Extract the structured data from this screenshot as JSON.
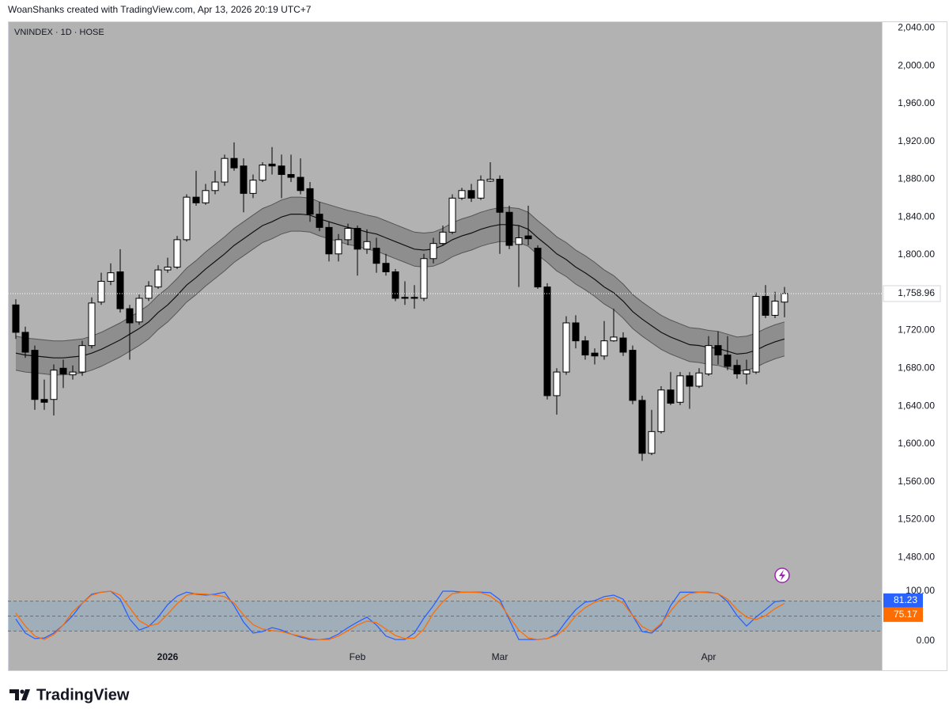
{
  "header": {
    "credit": "WoanShanks created with TradingView.com, Apr 13, 2026 20:19 UTC+7"
  },
  "footer": {
    "brand": "TradingView"
  },
  "chart_data": [
    {
      "type": "candlestick",
      "title": "VNINDEX · 1D · HOSE",
      "categories": [
        null,
        null,
        null,
        null,
        null,
        null,
        null,
        null,
        null,
        null,
        null,
        null,
        null,
        null,
        null,
        null,
        "2026",
        null,
        null,
        null,
        null,
        null,
        null,
        null,
        null,
        null,
        null,
        null,
        null,
        null,
        null,
        null,
        null,
        null,
        null,
        null,
        "Feb",
        null,
        null,
        null,
        null,
        null,
        null,
        null,
        null,
        null,
        null,
        null,
        null,
        null,
        null,
        "Mar",
        null,
        null,
        null,
        null,
        null,
        null,
        null,
        null,
        null,
        null,
        null,
        null,
        null,
        null,
        null,
        null,
        null,
        null,
        null,
        null,
        null,
        "Apr",
        null,
        null,
        null,
        null,
        null,
        null,
        null,
        null
      ],
      "open": [
        1747,
        1718,
        1699,
        1647,
        1647,
        1680,
        1673,
        1676,
        1704,
        1750,
        1772,
        1782,
        1743,
        1729,
        1754,
        1766,
        1784,
        1787,
        1816,
        1861,
        1855,
        1868,
        1877,
        1902,
        1894,
        1865,
        1879,
        1896,
        1894,
        1885,
        1882,
        1870,
        1843,
        1829,
        1801,
        1816,
        1828,
        1806,
        1807,
        1791,
        1782,
        1755,
        1755,
        1754,
        1796,
        1812,
        1824,
        1860,
        1868,
        1860,
        1878,
        1880,
        1845,
        1811,
        1820,
        1807,
        1766,
        1651,
        1676,
        1728,
        1709,
        1696,
        1693,
        1709,
        1712,
        1699,
        1646,
        1590,
        1613,
        1657,
        1644,
        1672,
        1661,
        1674,
        1704,
        1694,
        1683,
        1674,
        1676,
        1756,
        1736,
        1750
      ],
      "high": [
        1753,
        1724,
        1704,
        1668,
        1684,
        1689,
        1683,
        1709,
        1755,
        1781,
        1791,
        1806,
        1747,
        1758,
        1772,
        1789,
        1797,
        1820,
        1864,
        1889,
        1875,
        1889,
        1906,
        1919,
        1902,
        1885,
        1898,
        1914,
        1906,
        1906,
        1902,
        1877,
        1856,
        1835,
        1822,
        1833,
        1831,
        1827,
        1818,
        1801,
        1785,
        1772,
        1768,
        1801,
        1818,
        1831,
        1864,
        1871,
        1875,
        1884,
        1898,
        1884,
        1852,
        1831,
        1852,
        1810,
        1770,
        1680,
        1735,
        1736,
        1714,
        1701,
        1730,
        1743,
        1718,
        1704,
        1651,
        1636,
        1661,
        1676,
        1676,
        1676,
        1680,
        1714,
        1719,
        1714,
        1689,
        1689,
        1760,
        1768,
        1761,
        1766
      ],
      "low": [
        1711,
        1691,
        1636,
        1636,
        1630,
        1659,
        1668,
        1672,
        1701,
        1747,
        1768,
        1739,
        1689,
        1726,
        1751,
        1764,
        1781,
        1785,
        1814,
        1852,
        1853,
        1864,
        1873,
        1889,
        1845,
        1860,
        1877,
        1885,
        1860,
        1877,
        1864,
        1835,
        1825,
        1793,
        1793,
        1810,
        1778,
        1801,
        1781,
        1778,
        1751,
        1747,
        1743,
        1751,
        1791,
        1810,
        1822,
        1858,
        1856,
        1858,
        1877,
        1801,
        1806,
        1766,
        1810,
        1764,
        1647,
        1631,
        1673,
        1701,
        1689,
        1684,
        1689,
        1708,
        1693,
        1642,
        1582,
        1588,
        1611,
        1641,
        1641,
        1637,
        1659,
        1672,
        1684,
        1678,
        1669,
        1663,
        1674,
        1733,
        1733,
        1734
      ],
      "close": [
        1718,
        1697,
        1647,
        1644,
        1678,
        1674,
        1676,
        1704,
        1749,
        1772,
        1781,
        1743,
        1728,
        1754,
        1767,
        1784,
        1787,
        1816,
        1861,
        1855,
        1868,
        1877,
        1902,
        1892,
        1865,
        1879,
        1895,
        1894,
        1885,
        1882,
        1868,
        1843,
        1829,
        1801,
        1816,
        1828,
        1806,
        1814,
        1791,
        1782,
        1754,
        1754,
        1754,
        1796,
        1812,
        1824,
        1860,
        1868,
        1860,
        1879,
        1880,
        1845,
        1810,
        1818,
        1817,
        1766,
        1651,
        1676,
        1728,
        1709,
        1694,
        1693,
        1709,
        1713,
        1697,
        1646,
        1590,
        1613,
        1657,
        1643,
        1672,
        1661,
        1675,
        1704,
        1694,
        1682,
        1674,
        1678,
        1756,
        1736,
        1751,
        1758.96
      ],
      "last_close_label": "1,758.96",
      "up_color": "#ffffff",
      "down_color": "#000000",
      "band": {
        "color": "#111111",
        "basis": [
          1696,
          1694,
          1693,
          1692,
          1691,
          1691,
          1692,
          1693,
          1696,
          1700,
          1705,
          1710,
          1716,
          1722,
          1729,
          1739,
          1747,
          1757,
          1768,
          1776,
          1785,
          1793,
          1801,
          1810,
          1817,
          1824,
          1831,
          1835,
          1840,
          1843,
          1843,
          1842,
          1838,
          1835,
          1832,
          1829,
          1827,
          1824,
          1822,
          1818,
          1814,
          1810,
          1806,
          1805,
          1806,
          1810,
          1816,
          1820,
          1823,
          1827,
          1830,
          1832,
          1832,
          1831,
          1827,
          1818,
          1810,
          1801,
          1795,
          1787,
          1781,
          1774,
          1766,
          1760,
          1751,
          1740,
          1732,
          1725,
          1718,
          1713,
          1709,
          1705,
          1704,
          1702,
          1701,
          1698,
          1695,
          1696,
          1699,
          1704,
          1708,
          1711
        ],
        "upper": [
          1714,
          1712,
          1711,
          1710,
          1709,
          1709,
          1710,
          1711,
          1714,
          1718,
          1723,
          1728,
          1734,
          1740,
          1747,
          1757,
          1765,
          1775,
          1786,
          1794,
          1803,
          1811,
          1819,
          1828,
          1835,
          1842,
          1849,
          1853,
          1858,
          1861,
          1861,
          1860,
          1856,
          1853,
          1850,
          1847,
          1845,
          1842,
          1840,
          1836,
          1832,
          1828,
          1824,
          1823,
          1824,
          1828,
          1834,
          1838,
          1841,
          1845,
          1848,
          1850,
          1850,
          1849,
          1845,
          1836,
          1828,
          1819,
          1813,
          1805,
          1799,
          1792,
          1784,
          1778,
          1769,
          1758,
          1750,
          1743,
          1736,
          1731,
          1727,
          1723,
          1722,
          1720,
          1719,
          1716,
          1713,
          1714,
          1717,
          1722,
          1726,
          1729
        ],
        "lower": [
          1678,
          1676,
          1675,
          1674,
          1673,
          1673,
          1674,
          1675,
          1678,
          1682,
          1687,
          1692,
          1698,
          1704,
          1711,
          1721,
          1729,
          1739,
          1750,
          1758,
          1767,
          1775,
          1783,
          1792,
          1799,
          1806,
          1813,
          1817,
          1822,
          1825,
          1825,
          1824,
          1820,
          1817,
          1814,
          1811,
          1809,
          1806,
          1804,
          1800,
          1796,
          1792,
          1788,
          1787,
          1788,
          1792,
          1798,
          1802,
          1805,
          1809,
          1812,
          1814,
          1814,
          1813,
          1809,
          1800,
          1792,
          1783,
          1777,
          1769,
          1763,
          1756,
          1748,
          1742,
          1733,
          1722,
          1714,
          1707,
          1700,
          1695,
          1691,
          1687,
          1686,
          1684,
          1683,
          1680,
          1677,
          1678,
          1681,
          1686,
          1690,
          1693
        ]
      },
      "ylim": [
        1450,
        2047
      ],
      "yticks": [
        {
          "value": 2040,
          "label": "2,040.00"
        },
        {
          "value": 2000,
          "label": "2,000.00"
        },
        {
          "value": 1960,
          "label": "1,960.00"
        },
        {
          "value": 1920,
          "label": "1,920.00"
        },
        {
          "value": 1880,
          "label": "1,880.00"
        },
        {
          "value": 1840,
          "label": "1,840.00"
        },
        {
          "value": 1800,
          "label": "1,800.00"
        },
        {
          "value": 1760,
          "label": "1,760.00"
        },
        {
          "value": 1720,
          "label": "1,720.00"
        },
        {
          "value": 1680,
          "label": "1,680.00"
        },
        {
          "value": 1640,
          "label": "1,640.00"
        },
        {
          "value": 1600,
          "label": "1,600.00"
        },
        {
          "value": 1560,
          "label": "1,560.00"
        },
        {
          "value": 1520,
          "label": "1,520.00"
        },
        {
          "value": 1480,
          "label": "1,480.00"
        }
      ],
      "grid": false
    },
    {
      "type": "line",
      "series": [
        {
          "color": "#2962ff",
          "values": [
            44,
            16,
            5,
            6,
            16,
            32,
            51,
            76,
            94,
            98,
            100,
            84,
            44,
            22,
            29,
            48,
            73,
            90,
            98,
            94,
            92,
            94,
            98,
            71,
            38,
            16,
            19,
            27,
            22,
            14,
            8,
            3,
            3,
            5,
            14,
            27,
            38,
            48,
            32,
            10,
            3,
            3,
            16,
            46,
            71,
            100,
            100,
            98,
            98,
            98,
            97,
            83,
            43,
            3,
            3,
            3,
            5,
            14,
            40,
            63,
            78,
            81,
            89,
            92,
            84,
            51,
            19,
            16,
            32,
            71,
            98,
            98,
            98,
            98,
            95,
            79,
            51,
            30,
            48,
            63,
            79,
            81.23
          ]
        },
        {
          "color": "#ff6d00",
          "values": [
            56,
            30,
            10,
            3,
            13,
            32,
            59,
            76,
            92,
            98,
            100,
            92,
            67,
            41,
            30,
            35,
            54,
            75,
            92,
            95,
            94,
            92,
            89,
            76,
            52,
            33,
            24,
            21,
            19,
            14,
            10,
            5,
            3,
            3,
            10,
            21,
            32,
            40,
            37,
            24,
            11,
            5,
            6,
            24,
            56,
            79,
            95,
            98,
            98,
            97,
            90,
            76,
            48,
            22,
            6,
            3,
            5,
            11,
            27,
            51,
            67,
            78,
            84,
            87,
            76,
            51,
            29,
            19,
            35,
            60,
            83,
            95,
            98,
            97,
            95,
            84,
            63,
            48,
            43,
            51,
            65,
            75.17
          ]
        }
      ],
      "hlines": [
        80,
        50,
        20
      ],
      "ylim": [
        0,
        100
      ],
      "yticks": [
        {
          "value": 100,
          "label": "100.00"
        },
        {
          "value": 0,
          "label": "0.00"
        }
      ]
    }
  ]
}
